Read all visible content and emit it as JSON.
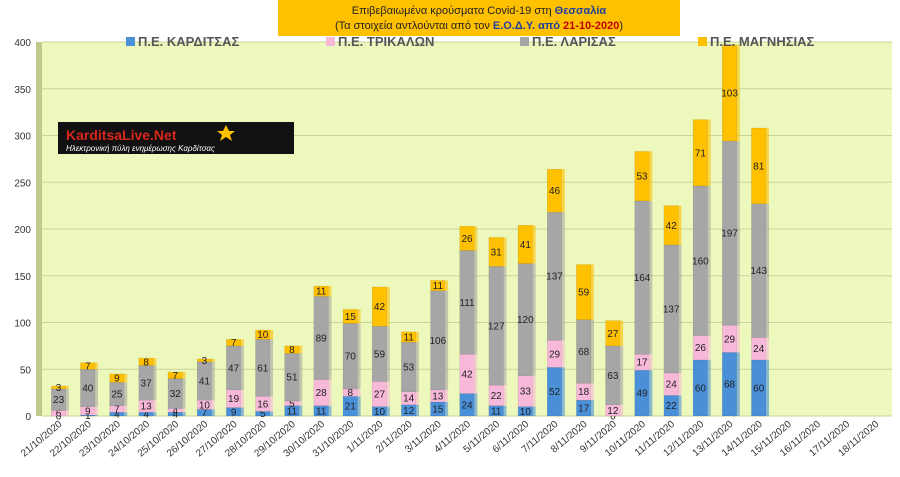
{
  "title": {
    "line1_pre": "Επιβεβαιωμένα κρούσματα Covid-19 στη ",
    "line1_region": "Θεσσαλία",
    "line2_pre": "(Τα στοιχεία αντλούνται από τον ",
    "line2_source": "Ε.Ο.Δ.Υ. από ",
    "line2_date": "21-10-2020",
    "line2_post": ")"
  },
  "logo": {
    "name": "KarditsaLive.Net",
    "tagline": "Ηλεκτρονική πύλη ενημέρωσης Καρδίτσας"
  },
  "colors": {
    "background": "#edf8bc",
    "karditsa": "#4a90d9",
    "trikala": "#f7b8d9",
    "larisa": "#a6a6a6",
    "magnisia": "#ffc000",
    "title_bg": "#ffc000"
  },
  "chart_data": {
    "type": "bar",
    "stacked": true,
    "ylim": [
      0,
      400
    ],
    "yticks": [
      0,
      50,
      100,
      150,
      200,
      250,
      300,
      350,
      400
    ],
    "grid": true,
    "legend_position": "top",
    "categories": [
      "21/10/2020",
      "22/10/2020",
      "23/10/2020",
      "24/10/2020",
      "25/10/2020",
      "26/10/2020",
      "27/10/2020",
      "28/10/2020",
      "29/10/2020",
      "30/10/2020",
      "31/10/2020",
      "1/11/2020",
      "2/11/2020",
      "3/11/2020",
      "4/11/2020",
      "5/11/2020",
      "6/11/2020",
      "7/11/2020",
      "8/11/2020",
      "9/11/2020",
      "10/11/2020",
      "11/11/2020",
      "12/11/2020",
      "13/11/2020",
      "14/11/2020",
      "15/11/2020",
      "16/11/2020",
      "17/11/2020",
      "18/11/2020"
    ],
    "series": [
      {
        "name": "Π.Ε. ΚΑΡΔΙΤΣΑΣ",
        "color": "#4a90d9",
        "values": [
          0,
          1,
          4,
          4,
          4,
          7,
          9,
          5,
          11,
          11,
          21,
          10,
          12,
          15,
          24,
          11,
          10,
          52,
          17,
          0,
          49,
          22,
          60,
          68,
          60,
          null,
          null,
          null,
          null
        ]
      },
      {
        "name": "Π.Ε. ΤΡΙΚΑΛΩΝ",
        "color": "#f7b8d9",
        "values": [
          6,
          9,
          7,
          13,
          4,
          10,
          19,
          16,
          5,
          28,
          8,
          27,
          14,
          13,
          42,
          22,
          33,
          29,
          18,
          12,
          17,
          24,
          26,
          29,
          24,
          null,
          null,
          null,
          null
        ]
      },
      {
        "name": "Π.Ε. ΛΑΡΙΣΑΣ",
        "color": "#a6a6a6",
        "values": [
          23,
          40,
          25,
          37,
          32,
          41,
          47,
          61,
          51,
          89,
          70,
          59,
          53,
          106,
          111,
          127,
          120,
          137,
          68,
          63,
          164,
          137,
          160,
          197,
          143,
          null,
          null,
          null,
          null
        ]
      },
      {
        "name": "Π.Ε. ΜΑΓΝΗΣΙΑΣ",
        "color": "#ffc000",
        "values": [
          3,
          7,
          9,
          8,
          7,
          3,
          7,
          10,
          8,
          11,
          15,
          42,
          11,
          11,
          26,
          31,
          41,
          46,
          59,
          27,
          53,
          42,
          71,
          103,
          81,
          null,
          null,
          null,
          null
        ]
      }
    ]
  }
}
